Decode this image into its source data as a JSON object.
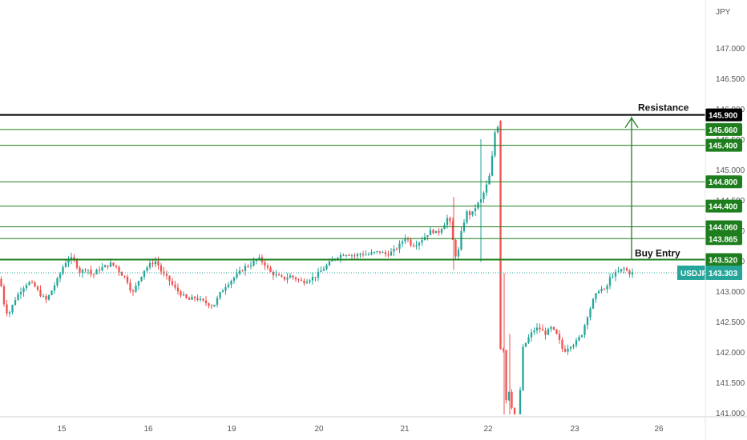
{
  "chart_data": {
    "type": "candlestick",
    "symbol": "USDJPY",
    "currency_label": "JPY",
    "y_ticks": [
      "147.000",
      "146.500",
      "146.000",
      "145.500",
      "145.000",
      "144.500",
      "144.000",
      "143.500",
      "143.000",
      "142.500",
      "142.000",
      "141.500",
      "141.000"
    ],
    "x_ticks": [
      "15",
      "16",
      "19",
      "20",
      "21",
      "22",
      "23",
      "26"
    ],
    "ylim": [
      140.95,
      147.6
    ],
    "last_price": "143.303",
    "resistance_level": "145.900",
    "green_levels": [
      "145.660",
      "145.400",
      "144.800",
      "144.400",
      "144.060",
      "143.865",
      "143.520"
    ],
    "annotations": {
      "resistance": "Resistance",
      "buy_entry": "Buy Entry"
    },
    "grid": false,
    "colors": {
      "up": "#26a69a",
      "down": "#ef5350",
      "level": "#1e7e1e",
      "resistance": "#000000",
      "current": "#26a69a",
      "background": "#ffffff"
    },
    "price_path": [
      [
        0,
        143.2
      ],
      [
        5,
        142.8
      ],
      [
        10,
        142.6
      ],
      [
        15,
        142.75
      ],
      [
        20,
        142.9
      ],
      [
        28,
        143.05
      ],
      [
        35,
        143.15
      ],
      [
        42,
        143.1
      ],
      [
        50,
        142.95
      ],
      [
        58,
        142.85
      ],
      [
        66,
        143.05
      ],
      [
        74,
        143.25
      ],
      [
        80,
        143.45
      ],
      [
        87,
        143.55
      ],
      [
        93,
        143.5
      ],
      [
        100,
        143.3
      ],
      [
        108,
        143.4
      ],
      [
        115,
        143.25
      ],
      [
        122,
        143.35
      ],
      [
        130,
        143.4
      ],
      [
        138,
        143.45
      ],
      [
        145,
        143.4
      ],
      [
        150,
        143.3
      ],
      [
        158,
        143.2
      ],
      [
        165,
        142.95
      ],
      [
        172,
        143.15
      ],
      [
        180,
        143.35
      ],
      [
        188,
        143.45
      ],
      [
        195,
        143.5
      ],
      [
        202,
        143.3
      ],
      [
        210,
        143.2
      ],
      [
        218,
        143.05
      ],
      [
        226,
        142.95
      ],
      [
        235,
        142.85
      ],
      [
        242,
        142.9
      ],
      [
        250,
        142.85
      ],
      [
        258,
        142.8
      ],
      [
        266,
        142.75
      ],
      [
        274,
        142.95
      ],
      [
        282,
        143.1
      ],
      [
        290,
        143.2
      ],
      [
        298,
        143.3
      ],
      [
        306,
        143.4
      ],
      [
        314,
        143.45
      ],
      [
        322,
        143.55
      ],
      [
        330,
        143.45
      ],
      [
        338,
        143.3
      ],
      [
        346,
        143.25
      ],
      [
        354,
        143.2
      ],
      [
        362,
        143.25
      ],
      [
        370,
        143.2
      ],
      [
        378,
        143.15
      ],
      [
        386,
        143.2
      ],
      [
        394,
        143.25
      ],
      [
        402,
        143.35
      ],
      [
        410,
        143.45
      ],
      [
        418,
        143.55
      ],
      [
        426,
        143.6
      ],
      [
        434,
        143.62
      ],
      [
        442,
        143.58
      ],
      [
        450,
        143.62
      ],
      [
        458,
        143.6
      ],
      [
        466,
        143.63
      ],
      [
        474,
        143.65
      ],
      [
        482,
        143.6
      ],
      [
        490,
        143.65
      ],
      [
        498,
        143.75
      ],
      [
        506,
        143.9
      ],
      [
        514,
        143.75
      ],
      [
        522,
        143.8
      ],
      [
        530,
        143.9
      ],
      [
        538,
        144.0
      ],
      [
        546,
        143.95
      ],
      [
        554,
        144.1
      ],
      [
        560,
        144.25
      ],
      [
        566,
        143.75
      ],
      [
        570,
        143.5
      ],
      [
        576,
        144.0
      ],
      [
        582,
        144.3
      ],
      [
        588,
        144.25
      ],
      [
        594,
        144.4
      ],
      [
        600,
        144.5
      ],
      [
        606,
        144.7
      ],
      [
        612,
        144.95
      ],
      [
        617,
        145.6
      ],
      [
        622,
        145.75
      ],
      [
        624,
        145.8
      ],
      [
        628,
        142.05
      ],
      [
        632,
        141.1
      ],
      [
        636,
        141.45
      ],
      [
        640,
        140.9
      ],
      [
        646,
        140.7
      ],
      [
        652,
        142.05
      ],
      [
        658,
        142.2
      ],
      [
        665,
        142.35
      ],
      [
        672,
        142.4
      ],
      [
        680,
        142.3
      ],
      [
        688,
        142.4
      ],
      [
        696,
        142.25
      ],
      [
        703,
        142.0
      ],
      [
        710,
        142.1
      ],
      [
        718,
        142.15
      ],
      [
        726,
        142.3
      ],
      [
        733,
        142.6
      ],
      [
        740,
        142.85
      ],
      [
        748,
        143.05
      ],
      [
        755,
        143.0
      ],
      [
        762,
        143.25
      ],
      [
        770,
        143.3
      ],
      [
        778,
        143.38
      ],
      [
        785,
        143.3
      ],
      [
        790,
        143.3
      ]
    ]
  }
}
